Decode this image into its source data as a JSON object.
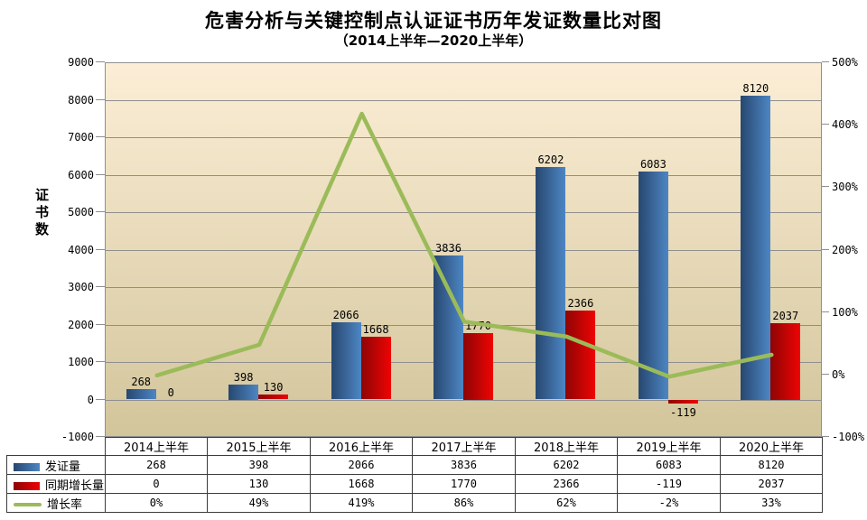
{
  "title": "危害分析与关键控制点认证证书历年发证数量比对图",
  "subtitle": "（2014上半年—2020上半年）",
  "chart_data": {
    "type": "bar+line combo",
    "title": "危害分析与关键控制点认证证书历年发证数量比对图",
    "subtitle": "（2014上半年—2020上半年）",
    "categories": [
      "2014上半年",
      "2015上半年",
      "2016上半年",
      "2017上半年",
      "2018上半年",
      "2019上半年",
      "2020上半年"
    ],
    "series": [
      {
        "name": "发证量",
        "type": "bar",
        "axis": "left",
        "values": [
          268,
          398,
          2066,
          3836,
          6202,
          6083,
          8120
        ],
        "labels": [
          "268",
          "398",
          "2066",
          "3836",
          "6202",
          "6083",
          "8120"
        ]
      },
      {
        "name": "同期增长量",
        "type": "bar",
        "axis": "left",
        "values": [
          0,
          130,
          1668,
          1770,
          2366,
          -119,
          2037
        ],
        "labels": [
          "0",
          "130",
          "1668",
          "1770",
          "2366",
          "-119",
          "2037"
        ]
      },
      {
        "name": "增长率",
        "type": "line",
        "axis": "right",
        "values_percent": [
          0,
          49,
          419,
          86,
          62,
          -2,
          33
        ],
        "labels": [
          "0%",
          "49%",
          "419%",
          "86%",
          "62%",
          "-2%",
          "33%"
        ]
      }
    ],
    "left_axis": {
      "title": "证书数",
      "min": -1000,
      "max": 9000,
      "step": 1000,
      "tick_labels": [
        "9000",
        "8000",
        "7000",
        "6000",
        "5000",
        "4000",
        "3000",
        "2000",
        "1000",
        "0",
        "-1000"
      ]
    },
    "right_axis": {
      "min": -100,
      "max": 500,
      "step": 100,
      "suffix": "%",
      "tick_labels": [
        "500%",
        "400%",
        "300%",
        "200%",
        "100%",
        "0%",
        "-100%"
      ]
    },
    "grid": true,
    "legend_position": "table-left",
    "colors": {
      "bar_issued_gradient": [
        "#27476f",
        "#4d86c4"
      ],
      "bar_growth_gradient": [
        "#8e0505",
        "#ee0303"
      ],
      "line_growth_rate": "#9bbb59",
      "plot_bg_top": "#fceed6",
      "plot_bg_bottom": "#d2c59b",
      "gridline": "#8f8f8f",
      "table_border": "#3c3c3c"
    }
  }
}
